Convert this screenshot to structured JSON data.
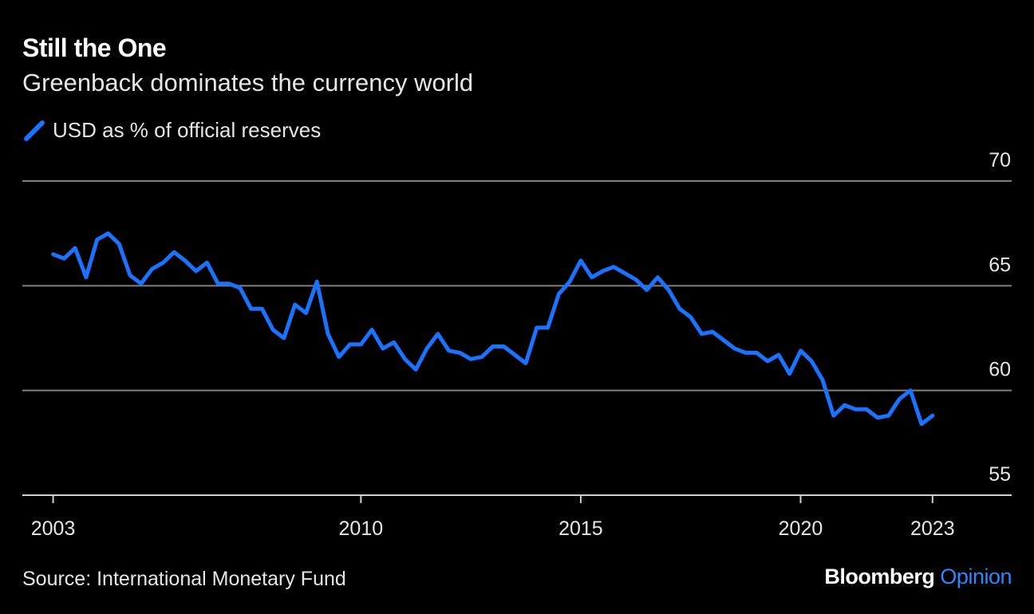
{
  "title": "Still the One",
  "subtitle": "Greenback dominates the currency world",
  "source": "Source: International Monetary Fund",
  "brand": {
    "part1": "Bloomberg",
    "part2": "Opinion"
  },
  "colors": {
    "background": "#000000",
    "series": "#1a73ff",
    "grid": "#808080",
    "brand_accent": "#2e86ff"
  },
  "chart_data": {
    "type": "line",
    "title": "Still the One",
    "subtitle": "Greenback dominates the currency world",
    "xlabel": "",
    "ylabel": "",
    "x_ticks": [
      2003,
      2010,
      2015,
      2020,
      2023
    ],
    "y_ticks": [
      55,
      60,
      65,
      70
    ],
    "xlim": [
      2002.3,
      2024.8
    ],
    "ylim": [
      55,
      70
    ],
    "grid": true,
    "y_axis_side": "right",
    "legend_position": "top-left",
    "series": [
      {
        "name": "USD as % of official reserves",
        "x": [
          2003.0,
          2003.25,
          2003.5,
          2003.75,
          2004.0,
          2004.25,
          2004.5,
          2004.75,
          2005.0,
          2005.25,
          2005.5,
          2005.75,
          2006.0,
          2006.25,
          2006.5,
          2006.75,
          2007.0,
          2007.25,
          2007.5,
          2007.75,
          2008.0,
          2008.25,
          2008.5,
          2008.75,
          2009.0,
          2009.25,
          2009.5,
          2009.75,
          2010.0,
          2010.25,
          2010.5,
          2010.75,
          2011.0,
          2011.25,
          2011.5,
          2011.75,
          2012.0,
          2012.25,
          2012.5,
          2012.75,
          2013.0,
          2013.25,
          2013.5,
          2013.75,
          2014.0,
          2014.25,
          2014.5,
          2014.75,
          2015.0,
          2015.25,
          2015.5,
          2015.75,
          2016.0,
          2016.25,
          2016.5,
          2016.75,
          2017.0,
          2017.25,
          2017.5,
          2017.75,
          2018.0,
          2018.25,
          2018.5,
          2018.75,
          2019.0,
          2019.25,
          2019.5,
          2019.75,
          2020.0,
          2020.25,
          2020.5,
          2020.75,
          2021.0,
          2021.25,
          2021.5,
          2021.75,
          2022.0,
          2022.25,
          2022.5,
          2022.75,
          2023.0
        ],
        "values": [
          66.5,
          66.3,
          66.8,
          65.4,
          67.2,
          67.5,
          67.0,
          65.5,
          65.1,
          65.8,
          66.1,
          66.6,
          66.2,
          65.7,
          66.1,
          65.1,
          65.1,
          64.9,
          63.9,
          63.9,
          62.9,
          62.5,
          64.1,
          63.7,
          65.2,
          62.7,
          61.6,
          62.2,
          62.2,
          62.9,
          62.0,
          62.3,
          61.5,
          61.0,
          62.0,
          62.7,
          61.9,
          61.8,
          61.5,
          61.6,
          62.1,
          62.1,
          61.7,
          61.3,
          63.0,
          63.0,
          64.6,
          65.2,
          66.2,
          65.4,
          65.7,
          65.9,
          65.6,
          65.3,
          64.8,
          65.4,
          64.8,
          63.9,
          63.5,
          62.7,
          62.8,
          62.4,
          62.0,
          61.8,
          61.8,
          61.4,
          61.7,
          60.8,
          61.9,
          61.4,
          60.5,
          58.8,
          59.3,
          59.1,
          59.1,
          58.7,
          58.8,
          59.6,
          60.0,
          58.4,
          58.8
        ]
      }
    ]
  }
}
